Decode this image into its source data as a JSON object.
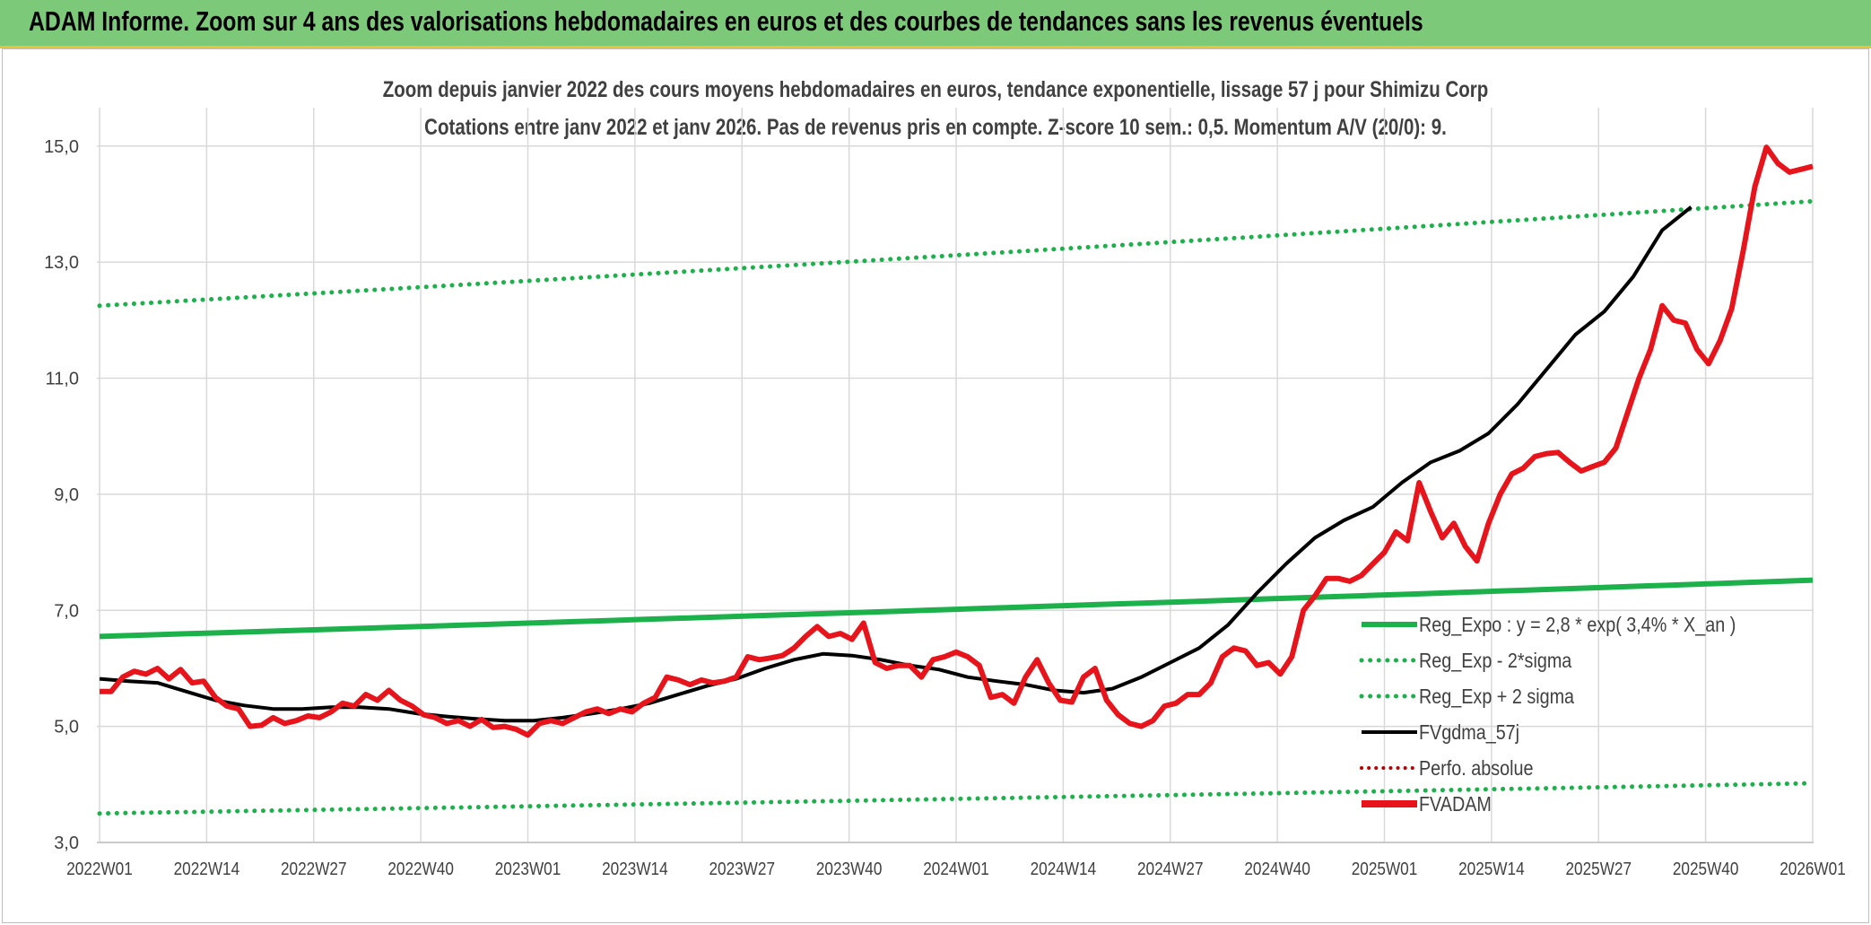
{
  "banner": {
    "title": "ADAM Informe. Zoom sur 4 ans des valorisations hebdomadaires en euros et des courbes de tendances sans les revenus éventuels"
  },
  "colors": {
    "banner_bg": "#7dc97a",
    "fvadam": "#e8141b",
    "fvgdma": "#000000",
    "regression": "#1db14c",
    "perfo": "#c00000"
  },
  "chart_data": {
    "type": "line",
    "title": "Zoom depuis janvier 2022 des cours moyens hebdomadaires en euros, tendance exponentielle, lissage 57 j pour Shimizu Corp",
    "subtitle": "Cotations entre janv 2022 et janv 2026. Pas de revenus pris en compte. Z-score 10 sem.: 0,5. Momentum A/V (20/0): 9.",
    "xlabel": "",
    "ylabel": "",
    "ylim": [
      3.0,
      15.6
    ],
    "yticks": [
      "3,0",
      "5,0",
      "7,0",
      "9,0",
      "11,0",
      "13,0",
      "15,0"
    ],
    "ytick_values": [
      3,
      5,
      7,
      9,
      11,
      13,
      15
    ],
    "xticks": [
      "2022W01",
      "2022W14",
      "2022W27",
      "2022W40",
      "2023W01",
      "2023W14",
      "2023W27",
      "2023W40",
      "2024W01",
      "2024W14",
      "2024W27",
      "2024W40",
      "2025W01",
      "2025W14",
      "2025W27",
      "2025W40",
      "2026W01"
    ],
    "x_weeks": 209,
    "grid": true,
    "legend_position": "bottom-right",
    "series": [
      {
        "name": "Reg_Expo : y = 2,8 * exp( 3,4% *  X_an )",
        "style": "solid-thick",
        "start": 6.55,
        "end": 7.52
      },
      {
        "name": "Reg_Exp - 2*sigma",
        "style": "dotted",
        "start": 3.5,
        "end": 4.02
      },
      {
        "name": "Reg_Exp + 2 sigma",
        "style": "dotted",
        "start": 12.25,
        "end": 14.05
      },
      {
        "name": "FVgdma_57j",
        "style": "solid",
        "points": [
          [
            0,
            5.82
          ],
          [
            5,
            5.78
          ],
          [
            10,
            5.75
          ],
          [
            15,
            5.6
          ],
          [
            20,
            5.45
          ],
          [
            25,
            5.36
          ],
          [
            30,
            5.3
          ],
          [
            35,
            5.3
          ],
          [
            40,
            5.33
          ],
          [
            45,
            5.33
          ],
          [
            50,
            5.3
          ],
          [
            55,
            5.22
          ],
          [
            60,
            5.17
          ],
          [
            65,
            5.13
          ],
          [
            70,
            5.1
          ],
          [
            75,
            5.1
          ],
          [
            80,
            5.15
          ],
          [
            85,
            5.22
          ],
          [
            90,
            5.3
          ],
          [
            95,
            5.4
          ],
          [
            100,
            5.55
          ],
          [
            105,
            5.7
          ],
          [
            110,
            5.82
          ],
          [
            115,
            6.0
          ],
          [
            120,
            6.15
          ],
          [
            125,
            6.25
          ],
          [
            130,
            6.22
          ],
          [
            135,
            6.15
          ],
          [
            140,
            6.05
          ],
          [
            145,
            5.98
          ],
          [
            150,
            5.85
          ],
          [
            155,
            5.78
          ],
          [
            160,
            5.72
          ],
          [
            165,
            5.62
          ],
          [
            170,
            5.58
          ],
          [
            175,
            5.65
          ],
          [
            180,
            5.85
          ],
          [
            185,
            6.1
          ],
          [
            190,
            6.35
          ],
          [
            195,
            6.75
          ],
          [
            200,
            7.3
          ],
          [
            205,
            7.8
          ],
          [
            210,
            8.25
          ],
          [
            215,
            8.55
          ],
          [
            220,
            8.78
          ],
          [
            225,
            9.2
          ],
          [
            230,
            9.55
          ],
          [
            235,
            9.75
          ],
          [
            240,
            10.05
          ],
          [
            245,
            10.55
          ],
          [
            250,
            11.15
          ],
          [
            255,
            11.75
          ],
          [
            260,
            12.15
          ],
          [
            265,
            12.75
          ],
          [
            270,
            13.55
          ],
          [
            275,
            13.95
          ]
        ]
      },
      {
        "name": "Perfo. absolue",
        "style": "dotted-red",
        "points": []
      },
      {
        "name": "FVADAM",
        "style": "solid-thick",
        "points": [
          [
            0,
            5.6
          ],
          [
            2,
            5.6
          ],
          [
            4,
            5.85
          ],
          [
            6,
            5.95
          ],
          [
            8,
            5.9
          ],
          [
            10,
            6.0
          ],
          [
            12,
            5.82
          ],
          [
            14,
            5.98
          ],
          [
            16,
            5.75
          ],
          [
            18,
            5.78
          ],
          [
            20,
            5.5
          ],
          [
            22,
            5.35
          ],
          [
            24,
            5.3
          ],
          [
            26,
            5.0
          ],
          [
            28,
            5.02
          ],
          [
            30,
            5.15
          ],
          [
            32,
            5.05
          ],
          [
            34,
            5.1
          ],
          [
            36,
            5.18
          ],
          [
            38,
            5.15
          ],
          [
            40,
            5.25
          ],
          [
            42,
            5.4
          ],
          [
            44,
            5.35
          ],
          [
            46,
            5.55
          ],
          [
            48,
            5.45
          ],
          [
            50,
            5.62
          ],
          [
            52,
            5.45
          ],
          [
            54,
            5.35
          ],
          [
            56,
            5.2
          ],
          [
            58,
            5.15
          ],
          [
            60,
            5.05
          ],
          [
            62,
            5.1
          ],
          [
            64,
            5.0
          ],
          [
            66,
            5.12
          ],
          [
            68,
            4.98
          ],
          [
            70,
            5.0
          ],
          [
            72,
            4.95
          ],
          [
            74,
            4.85
          ],
          [
            76,
            5.05
          ],
          [
            78,
            5.1
          ],
          [
            80,
            5.05
          ],
          [
            82,
            5.15
          ],
          [
            84,
            5.25
          ],
          [
            86,
            5.3
          ],
          [
            88,
            5.22
          ],
          [
            90,
            5.3
          ],
          [
            92,
            5.25
          ],
          [
            94,
            5.4
          ],
          [
            96,
            5.5
          ],
          [
            98,
            5.85
          ],
          [
            100,
            5.8
          ],
          [
            102,
            5.72
          ],
          [
            104,
            5.8
          ],
          [
            106,
            5.75
          ],
          [
            108,
            5.78
          ],
          [
            110,
            5.85
          ],
          [
            112,
            6.2
          ],
          [
            114,
            6.15
          ],
          [
            116,
            6.18
          ],
          [
            118,
            6.22
          ],
          [
            120,
            6.35
          ],
          [
            122,
            6.55
          ],
          [
            124,
            6.72
          ],
          [
            126,
            6.55
          ],
          [
            128,
            6.6
          ],
          [
            130,
            6.5
          ],
          [
            132,
            6.78
          ],
          [
            134,
            6.1
          ],
          [
            136,
            6.0
          ],
          [
            138,
            6.05
          ],
          [
            140,
            6.05
          ],
          [
            142,
            5.85
          ],
          [
            144,
            6.15
          ],
          [
            146,
            6.2
          ],
          [
            148,
            6.28
          ],
          [
            150,
            6.2
          ],
          [
            152,
            6.05
          ],
          [
            154,
            5.5
          ],
          [
            156,
            5.55
          ],
          [
            158,
            5.4
          ],
          [
            160,
            5.85
          ],
          [
            162,
            6.15
          ],
          [
            164,
            5.75
          ],
          [
            166,
            5.45
          ],
          [
            168,
            5.42
          ],
          [
            170,
            5.85
          ],
          [
            172,
            6.0
          ],
          [
            174,
            5.45
          ],
          [
            176,
            5.2
          ],
          [
            178,
            5.05
          ],
          [
            180,
            5.0
          ],
          [
            182,
            5.1
          ],
          [
            184,
            5.35
          ],
          [
            186,
            5.4
          ],
          [
            188,
            5.55
          ],
          [
            190,
            5.55
          ],
          [
            192,
            5.75
          ],
          [
            194,
            6.2
          ],
          [
            196,
            6.35
          ],
          [
            198,
            6.3
          ],
          [
            200,
            6.05
          ],
          [
            202,
            6.1
          ],
          [
            204,
            5.9
          ],
          [
            206,
            6.2
          ],
          [
            208,
            7.0
          ],
          [
            210,
            7.25
          ],
          [
            212,
            7.55
          ],
          [
            214,
            7.55
          ],
          [
            216,
            7.5
          ],
          [
            218,
            7.6
          ],
          [
            220,
            7.8
          ],
          [
            222,
            8.0
          ],
          [
            224,
            8.35
          ],
          [
            226,
            8.2
          ],
          [
            228,
            9.2
          ],
          [
            230,
            8.7
          ],
          [
            232,
            8.25
          ],
          [
            234,
            8.5
          ],
          [
            236,
            8.1
          ],
          [
            238,
            7.85
          ],
          [
            240,
            8.5
          ],
          [
            242,
            9.0
          ],
          [
            244,
            9.35
          ],
          [
            246,
            9.45
          ],
          [
            248,
            9.65
          ],
          [
            250,
            9.7
          ],
          [
            252,
            9.72
          ],
          [
            254,
            9.55
          ],
          [
            256,
            9.4
          ],
          [
            258,
            9.48
          ],
          [
            260,
            9.55
          ],
          [
            262,
            9.8
          ],
          [
            264,
            10.4
          ],
          [
            266,
            11.0
          ],
          [
            268,
            11.5
          ],
          [
            270,
            12.25
          ],
          [
            272,
            12.0
          ],
          [
            274,
            11.95
          ],
          [
            276,
            11.5
          ],
          [
            278,
            11.25
          ],
          [
            280,
            11.65
          ],
          [
            282,
            12.2
          ],
          [
            284,
            13.2
          ],
          [
            286,
            14.3
          ],
          [
            288,
            14.98
          ],
          [
            290,
            14.7
          ],
          [
            292,
            14.55
          ],
          [
            294,
            14.6
          ],
          [
            296,
            14.65
          ]
        ]
      }
    ]
  }
}
